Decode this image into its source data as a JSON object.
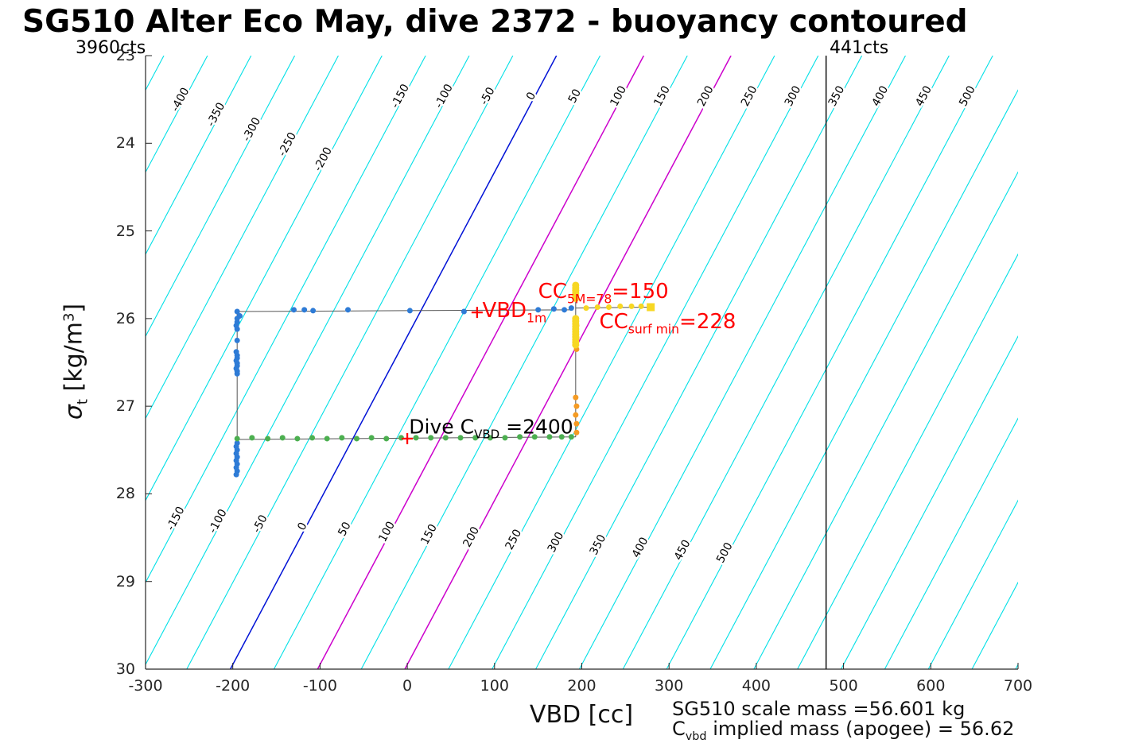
{
  "top_labels": {
    "left_counts": "3960cts",
    "line_counts": "441cts"
  },
  "footer": {
    "line1": "SG510 scale mass =56.601 kg",
    "line2_parts": [
      {
        "t": "C"
      },
      {
        "t": "vbd",
        "sub": true
      },
      {
        "t": " implied mass (apogee) = 56.62"
      }
    ]
  },
  "chart_data": {
    "type": "scatter",
    "title": "SG510 Alter Eco May, dive 2372 - buoyancy contoured",
    "xlabel": "VBD [cc]",
    "ylabel_parts": [
      {
        "t": "σ",
        "ital": true
      },
      {
        "t": "t",
        "sub": true
      },
      {
        "t": " [kg/m"
      },
      {
        "t": "3",
        "sup": true
      },
      {
        "t": "]"
      }
    ],
    "xlim": [
      -300,
      700
    ],
    "ylim": [
      23,
      30
    ],
    "y_axis_direction": "reversed (23 at top, 30 at bottom)",
    "x_ticks": [
      -300,
      -200,
      -100,
      0,
      100,
      200,
      300,
      400,
      500,
      600,
      700
    ],
    "y_ticks": [
      23,
      24,
      25,
      26,
      27,
      28,
      29,
      30
    ],
    "grid": false,
    "contours": {
      "description": "diagonal buoyancy contours in VBD/sigma space, labeled in cc",
      "values": [
        -450,
        -400,
        -350,
        -300,
        -250,
        -200,
        -150,
        -100,
        -50,
        0,
        50,
        100,
        150,
        200,
        250,
        300,
        350,
        400,
        450,
        500,
        550,
        600,
        650,
        700,
        750,
        800,
        850,
        900
      ],
      "top_label_values": [
        -400,
        -350,
        -300,
        -250,
        -200,
        -150,
        -100,
        -50,
        0,
        50,
        100,
        150,
        200,
        250,
        300,
        350,
        400,
        450,
        500
      ],
      "bottom_label_values": [
        -150,
        -100,
        -50,
        0,
        50,
        100,
        150,
        200,
        250,
        300,
        350,
        400,
        450,
        500
      ],
      "offset_vbd_at_sigma23": 171,
      "slope_cc_per_sigma": -53.4,
      "default_color": "#00E0E6",
      "special_colors": {
        "0": "#0012D6",
        "100": "#CC00CC",
        "200": "#CC00CC"
      }
    },
    "vline": {
      "x": 480,
      "color": "#000000"
    },
    "path_color": "#555555",
    "path_segments": [
      [
        [
          -195,
          25.92
        ],
        [
          188,
          25.9
        ]
      ],
      [
        [
          -195,
          25.92
        ],
        [
          -195,
          27.8
        ]
      ],
      [
        [
          -196,
          27.38
        ],
        [
          193,
          27.35
        ]
      ],
      [
        [
          193,
          27.35
        ],
        [
          193,
          25.62
        ]
      ],
      [
        [
          193,
          25.88
        ],
        [
          279,
          25.87
        ]
      ]
    ],
    "series": [
      {
        "name": "surface-points-blue",
        "color": "#2E7BD6",
        "r": 3.5,
        "points": [
          [
            -195,
            25.92
          ],
          [
            -192,
            25.97
          ],
          [
            -130,
            25.9
          ],
          [
            -118,
            25.9
          ],
          [
            -108,
            25.91
          ],
          [
            -68,
            25.9
          ],
          [
            3,
            25.91
          ],
          [
            65,
            25.92
          ],
          [
            150,
            25.9
          ],
          [
            168,
            25.89
          ],
          [
            180,
            25.9
          ],
          [
            188,
            25.88
          ]
        ]
      },
      {
        "name": "descent-points-blue",
        "color": "#2E7BD6",
        "r": 3.5,
        "points": [
          [
            -195,
            26.0
          ],
          [
            -195,
            26.04
          ],
          [
            -196,
            26.08
          ],
          [
            -195,
            26.12
          ],
          [
            -195,
            26.25
          ],
          [
            -196,
            26.38
          ],
          [
            -195,
            26.42
          ],
          [
            -195,
            26.45
          ],
          [
            -196,
            26.48
          ],
          [
            -195,
            26.51
          ],
          [
            -195,
            26.54
          ],
          [
            -196,
            26.57
          ],
          [
            -195,
            26.6
          ],
          [
            -195,
            26.63
          ],
          [
            -195,
            27.42
          ],
          [
            -196,
            27.46
          ],
          [
            -195,
            27.5
          ],
          [
            -196,
            27.54
          ],
          [
            -195,
            27.58
          ],
          [
            -196,
            27.62
          ],
          [
            -195,
            27.66
          ],
          [
            -196,
            27.7
          ],
          [
            -195,
            27.74
          ],
          [
            -196,
            27.78
          ]
        ]
      },
      {
        "name": "bottom-points-green",
        "color": "#4CAF50",
        "r": 3.5,
        "points": [
          [
            -195,
            27.37
          ],
          [
            -178,
            27.36
          ],
          [
            -160,
            27.37
          ],
          [
            -143,
            27.36
          ],
          [
            -126,
            27.37
          ],
          [
            -109,
            27.36
          ],
          [
            -92,
            27.37
          ],
          [
            -75,
            27.36
          ],
          [
            -58,
            27.37
          ],
          [
            -41,
            27.36
          ],
          [
            -24,
            27.37
          ],
          [
            -7,
            27.36
          ],
          [
            10,
            27.36
          ],
          [
            27,
            27.36
          ],
          [
            44,
            27.36
          ],
          [
            61,
            27.36
          ],
          [
            78,
            27.36
          ],
          [
            95,
            27.36
          ],
          [
            112,
            27.36
          ],
          [
            129,
            27.35
          ],
          [
            146,
            27.35
          ],
          [
            163,
            27.35
          ],
          [
            177,
            27.35
          ],
          [
            188,
            27.35
          ]
        ]
      },
      {
        "name": "climb-points-orange",
        "color": "#F59B23",
        "r": 3.5,
        "points": [
          [
            194,
            27.3
          ],
          [
            194,
            27.2
          ],
          [
            193,
            27.1
          ],
          [
            194,
            27.0
          ],
          [
            193,
            26.9
          ],
          [
            194,
            26.35
          ],
          [
            193,
            26.28
          ],
          [
            194,
            26.22
          ],
          [
            193,
            26.15
          ],
          [
            194,
            26.08
          ]
        ]
      },
      {
        "name": "climb-points-yellow",
        "color": "#F7D723",
        "r": 4.5,
        "points": [
          [
            193,
            25.62
          ],
          [
            193,
            25.65
          ],
          [
            193,
            25.68
          ],
          [
            193,
            25.71
          ],
          [
            193,
            25.74
          ],
          [
            193,
            25.77
          ],
          [
            193,
            26.0
          ],
          [
            193,
            26.03
          ],
          [
            193,
            26.06
          ],
          [
            193,
            26.09
          ],
          [
            193,
            26.12
          ],
          [
            193,
            26.15
          ],
          [
            193,
            26.18
          ],
          [
            193,
            26.21
          ],
          [
            193,
            26.24
          ],
          [
            193,
            26.27
          ],
          [
            193,
            26.3
          ]
        ]
      },
      {
        "name": "surface-tail-yellow",
        "color": "#F7D723",
        "r": 3.5,
        "points": [
          [
            205,
            25.88
          ],
          [
            218,
            25.87
          ],
          [
            231,
            25.87
          ],
          [
            244,
            25.86
          ],
          [
            257,
            25.86
          ],
          [
            268,
            25.86
          ]
        ]
      }
    ],
    "square_marker": {
      "x": 279,
      "y": 25.87,
      "color": "#F7D723",
      "size": 10
    },
    "plus_markers": [
      {
        "name": "vbd-1m-marker",
        "x": 80,
        "y": 25.93,
        "color": "#FF0000"
      },
      {
        "name": "dive-cvbd-marker",
        "x": 0,
        "y": 27.37,
        "color": "#FF0000"
      }
    ],
    "annotations": [
      {
        "name": "vbd-1m-label",
        "x": 86,
        "y": 25.95,
        "color": "#FF0000",
        "size": 26,
        "parts": [
          {
            "t": "VBD"
          },
          {
            "t": "1m",
            "sub": true
          }
        ]
      },
      {
        "name": "cc-5m-label",
        "x": 150,
        "y": 25.73,
        "color": "#FF0000",
        "size": 26,
        "parts": [
          {
            "t": "CC"
          },
          {
            "t": "5M=78",
            "sub": true
          },
          {
            "t": "=150"
          }
        ]
      },
      {
        "name": "cc-surf-min-label",
        "x": 220,
        "y": 26.07,
        "color": "#FF0000",
        "size": 26,
        "parts": [
          {
            "t": "CC"
          },
          {
            "t": "surf min",
            "sub": true
          },
          {
            "t": "=228"
          }
        ]
      },
      {
        "name": "dive-cvbd-label",
        "x": 2,
        "y": 27.27,
        "color": "#000000",
        "size": 25,
        "parts": [
          {
            "t": "Dive C"
          },
          {
            "t": "VBD",
            "sub": true
          },
          {
            "t": " =2400"
          }
        ]
      }
    ]
  }
}
